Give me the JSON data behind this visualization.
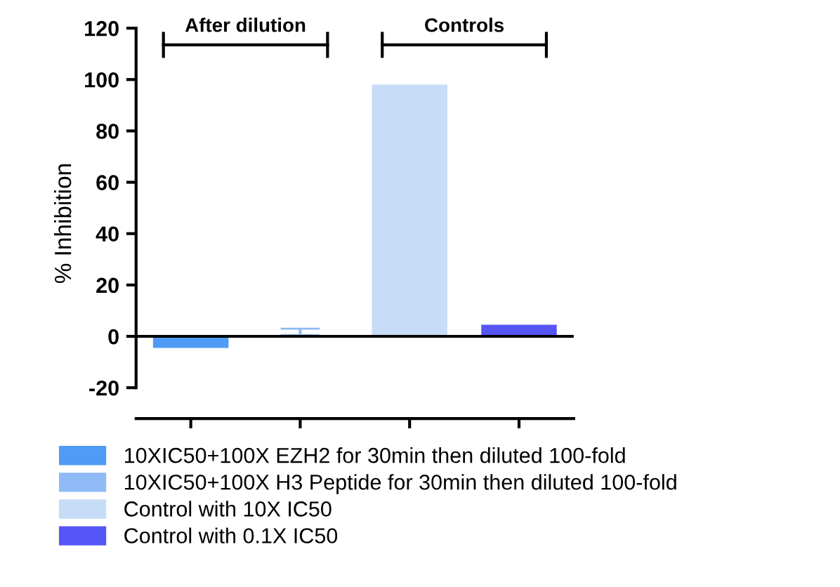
{
  "chart_data": {
    "type": "bar",
    "ylabel": "% Inhibition",
    "categories": [
      null,
      null,
      null,
      null
    ],
    "series": [
      {
        "name": "10XIC50+100X EZH2 for 30min then diluted 100-fold",
        "color": "#4f9bf5",
        "values": [
          -4.5,
          null,
          null,
          null
        ]
      },
      {
        "name": "10XIC50+100X H3 Peptide for 30min then diluted 100-fold",
        "color": "#8fbaf5",
        "values": [
          null,
          0.5,
          null,
          null
        ],
        "errors": [
          null,
          [
            0.5,
            3
          ],
          null,
          null
        ]
      },
      {
        "name": "Control with 10X IC50",
        "color": "#c6dcf7",
        "values": [
          null,
          null,
          98,
          null
        ]
      },
      {
        "name": "Control with 0.1X IC50",
        "color": "#5555f5",
        "values": [
          null,
          null,
          null,
          4.5
        ]
      }
    ],
    "annotations": [
      "After dilution",
      "Controls"
    ],
    "ref_lines": [
      {
        "axis": "y",
        "value": 0,
        "color": "#000000"
      }
    ],
    "ylim": [
      -32,
      120
    ],
    "yticks": [
      -20,
      0,
      20,
      40,
      60,
      80,
      100,
      120
    ],
    "grid": false,
    "legend": "bottom"
  }
}
